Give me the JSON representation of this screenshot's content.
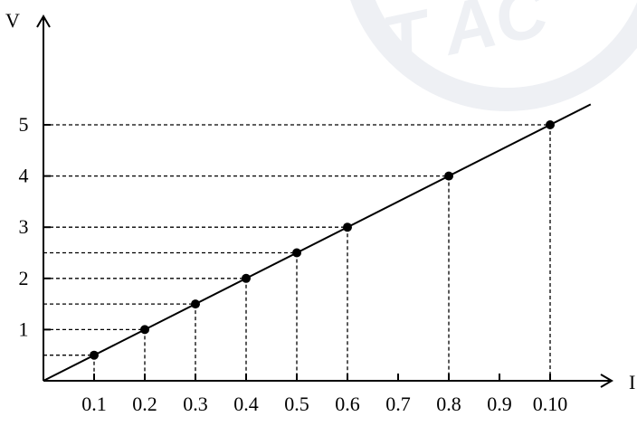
{
  "chart_data": {
    "type": "line",
    "title": "",
    "xlabel": "I",
    "ylabel": "V",
    "x_tick_labels": [
      "0.1",
      "0.2",
      "0.3",
      "0.4",
      "0.5",
      "0.6",
      "0.7",
      "0.8",
      "0.9",
      "0.10"
    ],
    "y_tick_labels": [
      "1",
      "2",
      "3",
      "4",
      "5"
    ],
    "xlim": [
      0,
      1.08
    ],
    "ylim": [
      0,
      5.9
    ],
    "grid": false,
    "guide_lines": "dashed lines from each point to both axes",
    "series": [
      {
        "name": "",
        "points": [
          {
            "x": 0.1,
            "y": 0.5
          },
          {
            "x": 0.2,
            "y": 1.0
          },
          {
            "x": 0.3,
            "y": 1.5
          },
          {
            "x": 0.4,
            "y": 2.0
          },
          {
            "x": 0.5,
            "y": 2.5
          },
          {
            "x": 0.6,
            "y": 3.0
          },
          {
            "x": 0.8,
            "y": 4.0
          },
          {
            "x": 1.0,
            "y": 5.0
          }
        ],
        "fit_line": {
          "from": [
            0,
            0
          ],
          "to": [
            1.08,
            5.4
          ]
        }
      }
    ],
    "colors": {
      "ink": "#000000",
      "watermark": "#eef0f4"
    }
  }
}
